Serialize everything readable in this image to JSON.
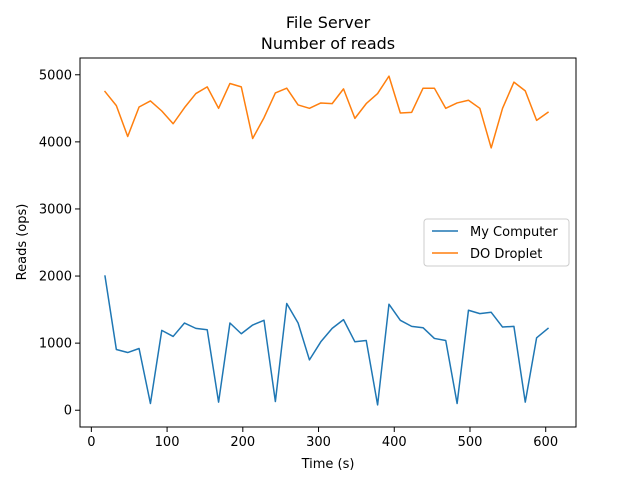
{
  "chart_data": {
    "type": "line",
    "title": "File Server",
    "subtitle": "Number of reads",
    "xlabel": "Time (s)",
    "ylabel": "Reads (ops)",
    "xlim": [
      -15,
      640
    ],
    "ylim": [
      -250,
      5250
    ],
    "xticks": [
      0,
      100,
      200,
      300,
      400,
      500,
      600
    ],
    "yticks": [
      0,
      1000,
      2000,
      3000,
      4000,
      5000
    ],
    "grid": false,
    "legend_position": "center-right",
    "x": [
      18,
      33,
      48,
      63,
      78,
      93,
      108,
      123,
      138,
      153,
      168,
      183,
      198,
      213,
      228,
      243,
      258,
      273,
      288,
      303,
      318,
      333,
      348,
      363,
      378,
      393,
      408,
      423,
      438,
      453,
      468,
      483,
      498,
      513,
      528,
      543,
      558,
      573,
      588,
      603
    ],
    "series": [
      {
        "name": "My Computer",
        "color": "#1f77b4",
        "values": [
          2000,
          905,
          860,
          920,
          100,
          1190,
          1100,
          1300,
          1220,
          1200,
          120,
          1300,
          1140,
          1270,
          1340,
          130,
          1590,
          1300,
          750,
          1020,
          1220,
          1350,
          1020,
          1040,
          80,
          1580,
          1340,
          1250,
          1230,
          1070,
          1040,
          100,
          1490,
          1440,
          1460,
          1240,
          1250,
          120,
          1080,
          1220
        ]
      },
      {
        "name": "DO Droplet",
        "color": "#ff7f0e",
        "values": [
          4750,
          4540,
          4080,
          4520,
          4610,
          4460,
          4270,
          4510,
          4720,
          4820,
          4500,
          4870,
          4820,
          4050,
          4360,
          4730,
          4800,
          4550,
          4500,
          4580,
          4570,
          4790,
          4350,
          4570,
          4720,
          4980,
          4430,
          4440,
          4800,
          4800,
          4500,
          4580,
          4620,
          4500,
          3910,
          4500,
          4890,
          4760,
          4320,
          4440
        ]
      }
    ]
  }
}
